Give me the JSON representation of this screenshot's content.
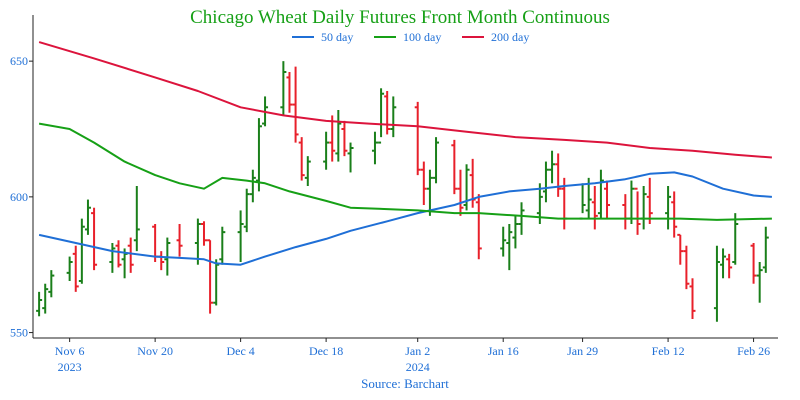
{
  "chart_data": {
    "type": "ohlc",
    "title": "Chicago Wheat Daily Futures Front Month Continuous",
    "source": "Source: Barchart",
    "xlabel": "",
    "ylabel": "",
    "ylim": [
      548,
      667
    ],
    "y_ticks": [
      {
        "value": 550,
        "label": "550"
      },
      {
        "value": 600,
        "label": "600"
      },
      {
        "value": 650,
        "label": "650"
      }
    ],
    "x_ticks": [
      {
        "date": "2023-11-06",
        "label": "Nov 6",
        "sub": "2023"
      },
      {
        "date": "2023-11-20",
        "label": "Nov 20",
        "sub": ""
      },
      {
        "date": "2023-12-04",
        "label": "Dec 4",
        "sub": ""
      },
      {
        "date": "2023-12-18",
        "label": "Dec 18",
        "sub": ""
      },
      {
        "date": "2024-01-02",
        "label": "Jan 2",
        "sub": "2024"
      },
      {
        "date": "2024-01-16",
        "label": "Jan 16",
        "sub": ""
      },
      {
        "date": "2024-01-29",
        "label": "Jan 29",
        "sub": ""
      },
      {
        "date": "2024-02-12",
        "label": "Feb 12",
        "sub": ""
      },
      {
        "date": "2024-02-26",
        "label": "Feb 26",
        "sub": ""
      }
    ],
    "grid": false,
    "legend_position": "top-center",
    "colors": {
      "up": "#1a7f1a",
      "down": "#e8202a",
      "ma50": "#1f6fd6",
      "ma100": "#16a016",
      "ma200": "#dc143c",
      "title": "#16a016",
      "axis_text": "#1f6fd6",
      "axis": "#222222"
    },
    "series": [
      {
        "name": "50 day",
        "color": "#1f6fd6",
        "points": [
          [
            "2023-11-01",
            586
          ],
          [
            "2023-11-06",
            583.5
          ],
          [
            "2023-11-13",
            580
          ],
          [
            "2023-11-20",
            578
          ],
          [
            "2023-11-24",
            577.5
          ],
          [
            "2023-11-28",
            577
          ],
          [
            "2023-11-30",
            575.5
          ],
          [
            "2023-12-04",
            575
          ],
          [
            "2023-12-08",
            578
          ],
          [
            "2023-12-13",
            581.5
          ],
          [
            "2023-12-18",
            584.5
          ],
          [
            "2023-12-22",
            587.5
          ],
          [
            "2023-12-28",
            591
          ],
          [
            "2024-01-02",
            594
          ],
          [
            "2024-01-08",
            597
          ],
          [
            "2024-01-12",
            600
          ],
          [
            "2024-01-17",
            602
          ],
          [
            "2024-01-22",
            603
          ],
          [
            "2024-01-26",
            604
          ],
          [
            "2024-01-31",
            605
          ],
          [
            "2024-02-05",
            606.5
          ],
          [
            "2024-02-09",
            608.5
          ],
          [
            "2024-02-13",
            609
          ],
          [
            "2024-02-16",
            607.5
          ],
          [
            "2024-02-21",
            603
          ],
          [
            "2024-02-26",
            600.5
          ],
          [
            "2024-02-29",
            600
          ]
        ]
      },
      {
        "name": "100 day",
        "color": "#16a016",
        "points": [
          [
            "2023-11-01",
            627
          ],
          [
            "2023-11-06",
            625
          ],
          [
            "2023-11-10",
            620
          ],
          [
            "2023-11-15",
            613
          ],
          [
            "2023-11-20",
            608
          ],
          [
            "2023-11-24",
            605
          ],
          [
            "2023-11-28",
            603
          ],
          [
            "2023-12-01",
            607
          ],
          [
            "2023-12-05",
            606
          ],
          [
            "2023-12-08",
            605
          ],
          [
            "2023-12-12",
            602
          ],
          [
            "2023-12-18",
            598.5
          ],
          [
            "2023-12-22",
            596
          ],
          [
            "2023-12-28",
            595.5
          ],
          [
            "2024-01-02",
            595
          ],
          [
            "2024-01-08",
            594
          ],
          [
            "2024-01-12",
            594
          ],
          [
            "2024-01-19",
            593
          ],
          [
            "2024-01-25",
            592
          ],
          [
            "2024-02-01",
            592
          ],
          [
            "2024-02-07",
            592
          ],
          [
            "2024-02-14",
            592
          ],
          [
            "2024-02-20",
            591.5
          ],
          [
            "2024-02-29",
            592
          ]
        ]
      },
      {
        "name": "200 day",
        "color": "#dc143c",
        "points": [
          [
            "2023-11-01",
            657
          ],
          [
            "2023-11-10",
            651
          ],
          [
            "2023-11-20",
            644
          ],
          [
            "2023-11-27",
            639
          ],
          [
            "2023-12-04",
            633
          ],
          [
            "2023-12-11",
            630
          ],
          [
            "2023-12-18",
            628
          ],
          [
            "2023-12-25",
            627
          ],
          [
            "2024-01-02",
            626
          ],
          [
            "2024-01-10",
            624
          ],
          [
            "2024-01-18",
            622
          ],
          [
            "2024-01-26",
            621
          ],
          [
            "2024-02-02",
            620
          ],
          [
            "2024-02-09",
            618
          ],
          [
            "2024-02-16",
            617
          ],
          [
            "2024-02-23",
            615.5
          ],
          [
            "2024-02-29",
            614.5
          ]
        ]
      }
    ],
    "bars": [
      [
        "2023-11-01",
        565,
        556,
        558,
        562
      ],
      [
        "2023-11-02",
        568,
        557,
        559,
        566
      ],
      [
        "2023-11-03",
        573,
        563,
        565,
        571
      ],
      [
        "2023-11-06",
        578,
        569,
        572,
        576
      ],
      [
        "2023-11-07",
        582,
        565,
        579,
        567
      ],
      [
        "2023-11-08",
        592,
        568,
        569,
        589
      ],
      [
        "2023-11-09",
        599,
        586,
        588,
        596
      ],
      [
        "2023-11-10",
        596,
        573,
        594,
        575
      ],
      [
        "2023-11-13",
        583,
        572,
        576,
        581
      ],
      [
        "2023-11-14",
        584,
        574,
        582,
        575
      ],
      [
        "2023-11-15",
        581,
        570,
        577,
        579
      ],
      [
        "2023-11-16",
        585,
        572,
        582,
        575
      ],
      [
        "2023-11-17",
        604,
        580,
        584,
        588
      ],
      [
        "2023-11-20",
        590,
        576,
        589,
        578
      ],
      [
        "2023-11-21",
        580,
        573,
        578,
        576
      ],
      [
        "2023-11-22",
        585,
        571,
        577,
        583
      ],
      [
        "2023-11-24",
        590,
        578,
        584,
        582
      ],
      [
        "2023-11-27",
        592,
        575,
        583,
        590
      ],
      [
        "2023-11-28",
        591,
        582,
        590,
        584
      ],
      [
        "2023-11-29",
        584,
        557,
        584,
        561
      ],
      [
        "2023-11-30",
        577,
        560,
        561,
        575
      ],
      [
        "2023-12-01",
        589,
        575,
        577,
        587
      ],
      [
        "2023-12-04",
        595,
        576,
        587,
        590
      ],
      [
        "2023-12-05",
        603,
        587,
        589,
        601
      ],
      [
        "2023-12-06",
        610,
        598,
        601,
        607
      ],
      [
        "2023-12-07",
        629,
        602,
        606,
        626
      ],
      [
        "2023-12-08",
        637,
        626,
        627,
        633
      ],
      [
        "2023-12-11",
        650,
        630,
        633,
        646
      ],
      [
        "2023-12-12",
        646,
        631,
        644,
        634
      ],
      [
        "2023-12-13",
        648,
        620,
        634,
        623
      ],
      [
        "2023-12-14",
        622,
        606,
        620,
        608
      ],
      [
        "2023-12-15",
        615,
        604,
        607,
        613
      ],
      [
        "2023-12-18",
        624,
        610,
        613,
        620
      ],
      [
        "2023-12-19",
        630,
        613,
        620,
        617
      ],
      [
        "2023-12-20",
        632,
        613,
        616,
        627
      ],
      [
        "2023-12-21",
        628,
        615,
        625,
        617
      ],
      [
        "2023-12-22",
        620,
        609,
        616,
        618
      ],
      [
        "2023-12-26",
        624,
        612,
        617,
        620
      ],
      [
        "2023-12-27",
        640,
        622,
        620,
        638
      ],
      [
        "2023-12-28",
        639,
        623,
        637,
        625
      ],
      [
        "2023-12-29",
        637,
        622,
        625,
        633
      ],
      [
        "2024-01-02",
        635,
        608,
        633,
        610
      ],
      [
        "2024-01-03",
        613,
        597,
        610,
        603
      ],
      [
        "2024-01-04",
        610,
        593,
        603,
        607
      ],
      [
        "2024-01-05",
        622,
        605,
        607,
        620
      ],
      [
        "2024-01-08",
        621,
        601,
        619,
        603
      ],
      [
        "2024-01-09",
        610,
        593,
        603,
        596
      ],
      [
        "2024-01-10",
        612,
        595,
        597,
        610
      ],
      [
        "2024-01-11",
        614,
        596,
        608,
        599
      ],
      [
        "2024-01-12",
        601,
        577,
        598,
        581
      ],
      [
        "2024-01-16",
        589,
        578,
        581,
        584
      ],
      [
        "2024-01-17",
        590,
        573,
        583,
        587
      ],
      [
        "2024-01-18",
        593,
        581,
        585,
        590
      ],
      [
        "2024-01-19",
        598,
        586,
        590,
        595
      ],
      [
        "2024-01-22",
        605,
        590,
        594,
        600
      ],
      [
        "2024-01-23",
        613,
        598,
        602,
        610
      ],
      [
        "2024-01-24",
        617,
        605,
        610,
        612
      ],
      [
        "2024-01-25",
        616,
        600,
        612,
        603
      ],
      [
        "2024-01-26",
        607,
        588,
        603,
        592
      ],
      [
        "2024-01-29",
        605,
        594,
        592,
        597
      ],
      [
        "2024-01-30",
        607,
        592,
        595,
        599
      ],
      [
        "2024-01-31",
        604,
        588,
        598,
        593
      ],
      [
        "2024-02-01",
        610,
        592,
        594,
        606
      ],
      [
        "2024-02-02",
        606,
        592,
        603,
        597
      ],
      [
        "2024-02-05",
        601,
        588,
        597,
        592
      ],
      [
        "2024-02-06",
        606,
        590,
        592,
        603
      ],
      [
        "2024-02-07",
        602,
        586,
        603,
        590
      ],
      [
        "2024-02-08",
        604,
        588,
        592,
        601
      ],
      [
        "2024-02-09",
        607,
        590,
        600,
        594
      ],
      [
        "2024-02-12",
        604,
        588,
        594,
        600
      ],
      [
        "2024-02-13",
        602,
        585,
        598,
        589
      ],
      [
        "2024-02-14",
        586,
        575,
        586,
        580
      ],
      [
        "2024-02-15",
        582,
        566,
        580,
        568
      ],
      [
        "2024-02-16",
        570,
        555,
        567,
        558
      ],
      [
        "2024-02-20",
        582,
        554,
        559,
        576
      ],
      [
        "2024-02-21",
        581,
        570,
        575,
        578
      ],
      [
        "2024-02-22",
        579,
        570,
        577,
        574
      ],
      [
        "2024-02-23",
        594,
        575,
        576,
        590
      ],
      [
        "2024-02-26",
        583,
        568,
        582,
        571
      ],
      [
        "2024-02-27",
        576,
        561,
        571,
        573
      ],
      [
        "2024-02-28",
        589,
        572,
        574,
        585
      ]
    ]
  }
}
